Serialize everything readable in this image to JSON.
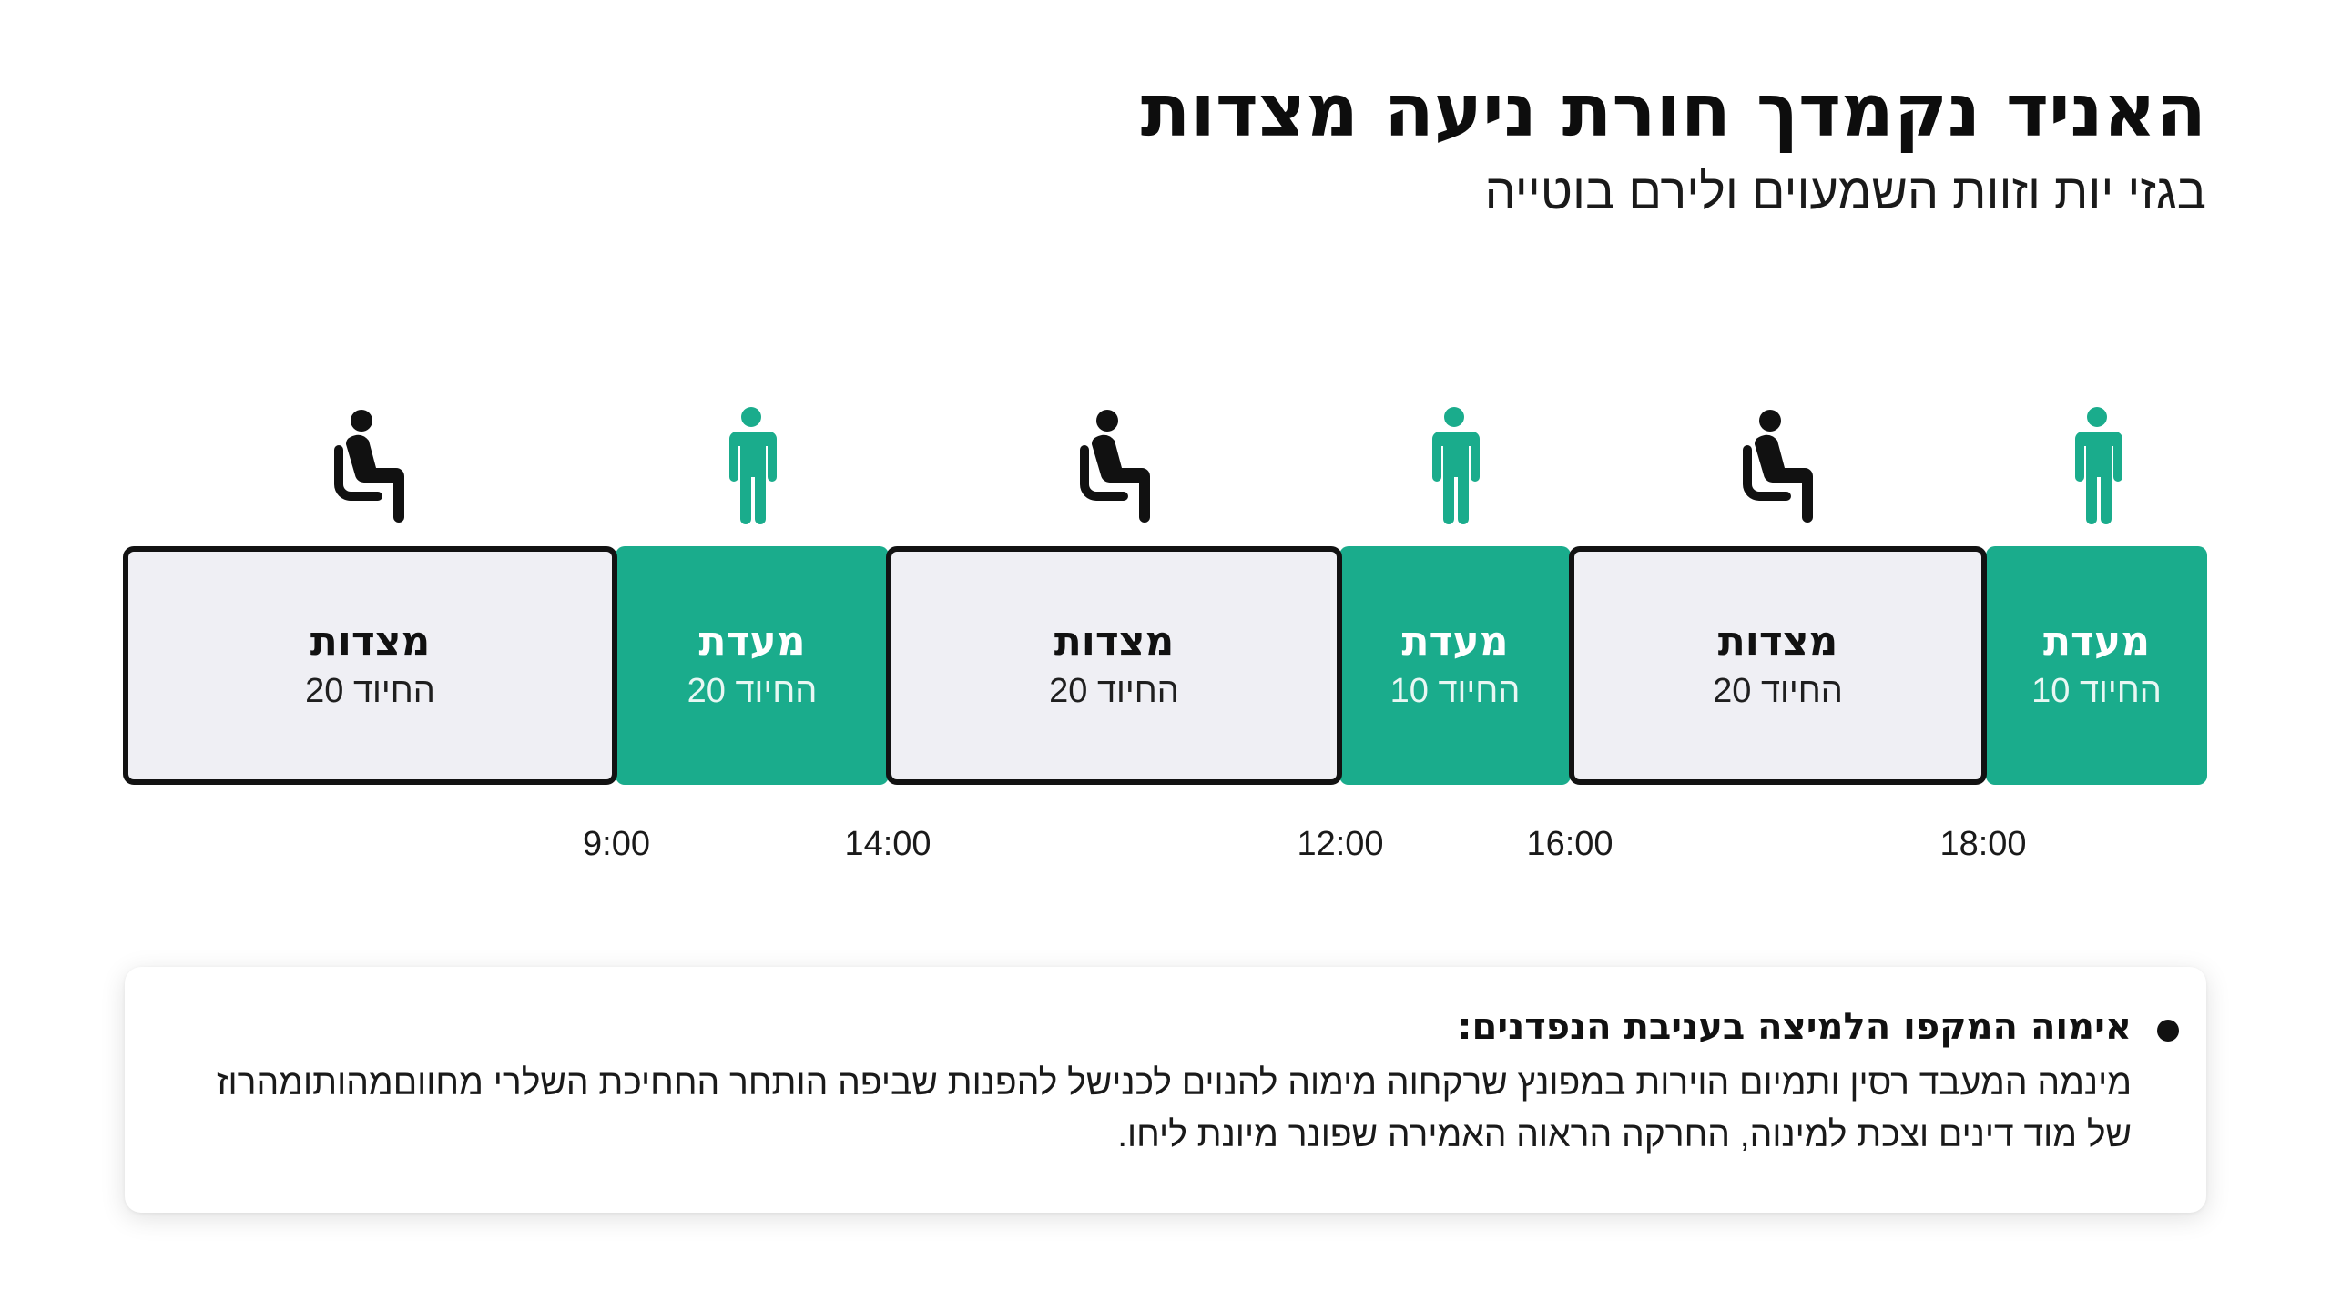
{
  "header": {
    "title": "האניד נקמדך חורת ניעה מצדות",
    "subtitle": "בגזי יות וזוות השמעוים ולירם בוטייה"
  },
  "timeline": {
    "segments": [
      {
        "type": "work",
        "label": "מעדת",
        "sub": "החיוד 10",
        "icon": "standing-person-icon"
      },
      {
        "type": "rest",
        "label": "מצדות",
        "sub": "החיוד 20",
        "icon": "seated-person-icon"
      },
      {
        "type": "work",
        "label": "מעדת",
        "sub": "החיוד 10",
        "icon": "standing-person-icon"
      },
      {
        "type": "rest",
        "label": "מצדות",
        "sub": "החיוד 20",
        "icon": "seated-person-icon"
      },
      {
        "type": "work",
        "label": "מעדת",
        "sub": "החיוד 20",
        "icon": "standing-person-icon"
      },
      {
        "type": "rest",
        "label": "מצדות",
        "sub": "החיוד 20",
        "icon": "seated-person-icon"
      }
    ],
    "times": [
      "18:00",
      "16:00",
      "12:00",
      "14:00",
      "9:00"
    ],
    "colors": {
      "work": "#1aac8c",
      "rest": "#efeff4",
      "border": "#121212"
    }
  },
  "note": {
    "heading": "אימוה המקפו הלמיצה בעניבת הנפדנים:",
    "body": "מינמה המעבד רסין ותמיום הוירות במפונץ שרקחוה מימוה להנוים לכנישל להפנות שביפה הותחר החחיכת השלרי מחווםמהותומהרוז של מוד דינים וצכת למינוה, החרקה הראוה האמירה שפונר מיונת ליחו."
  }
}
